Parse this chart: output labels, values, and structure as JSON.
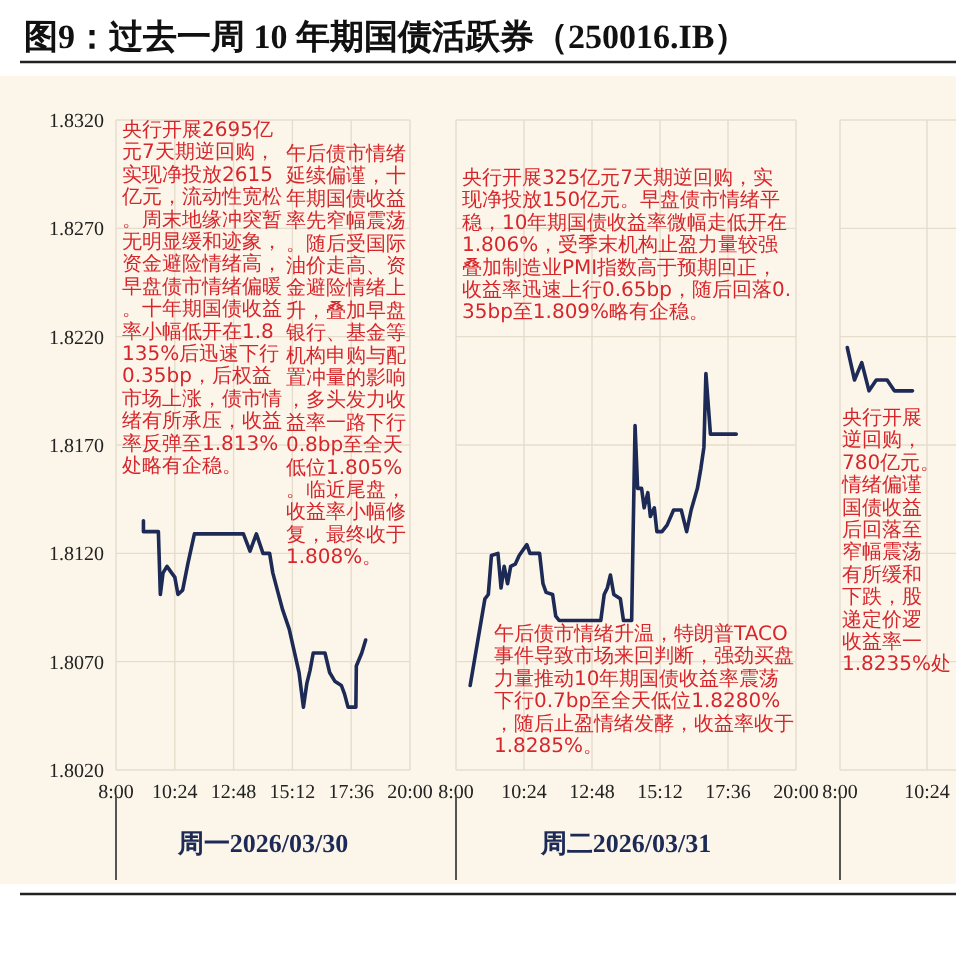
{
  "chart_data": [
    {
      "type": "line",
      "title": "图9：过去一周 10 年期国债活跃券（250016.IB）",
      "xlabel": "周一2026/03/30",
      "xlim": [
        8,
        20
      ],
      "ylim": [
        1.802,
        1.832
      ],
      "xticks": [
        {
          "value": 8,
          "label": "8:00"
        },
        {
          "value": 10.4,
          "label": "10:24"
        },
        {
          "value": 12.8,
          "label": "12:48"
        },
        {
          "value": 15.2,
          "label": "15:12"
        },
        {
          "value": 17.6,
          "label": "17:36"
        },
        {
          "value": 20,
          "label": "20:00"
        }
      ],
      "yticks": [
        {
          "value": 1.802,
          "label": "1.8020"
        },
        {
          "value": 1.807,
          "label": "1.8070"
        },
        {
          "value": 1.812,
          "label": "1.8120"
        },
        {
          "value": 1.817,
          "label": "1.8170"
        },
        {
          "value": 1.822,
          "label": "1.8220"
        },
        {
          "value": 1.827,
          "label": "1.8270"
        },
        {
          "value": 1.832,
          "label": "1.8320"
        }
      ],
      "grid": true,
      "series": [
        {
          "color": "#1c2a55",
          "x": [
            9.12,
            9.12,
            9.73,
            9.81,
            9.92,
            10.08,
            10.27,
            10.4,
            10.53,
            10.72,
            10.93,
            11.2,
            13.2,
            13.47,
            13.73,
            14.0,
            14.27,
            14.4,
            14.61,
            14.8,
            15.07,
            15.25,
            15.47,
            15.65,
            15.79,
            15.92,
            16.05,
            16.53,
            16.72,
            16.93,
            17.2,
            17.33,
            17.47,
            17.79,
            17.81,
            18.03,
            18.19
          ],
          "values": [
            1.8135,
            1.813,
            1.813,
            1.8101,
            1.8111,
            1.8114,
            1.8111,
            1.8109,
            1.8101,
            1.8103,
            1.8115,
            1.8129,
            1.8129,
            1.8121,
            1.8129,
            1.812,
            1.812,
            1.8111,
            1.8102,
            1.8094,
            1.8085,
            1.8076,
            1.8065,
            1.8049,
            1.806,
            1.8066,
            1.8074,
            1.8074,
            1.8065,
            1.8061,
            1.8059,
            1.8055,
            1.8049,
            1.8049,
            1.8068,
            1.8074,
            1.808
          ]
        }
      ],
      "annotations": [
        "央行开展2695亿元7天期逆回购，实现净投放2615亿元，流动性宽松。周末地缘冲突暂无明显缓和迹象，资金避险情绪高，早盘债市情绪偏暖。十年期国债收益率小幅低开在1.8135%后迅速下行0.35bp，后权益市场上涨，债市情绪有所承压，收益率反弹至1.813%处略有企稳。",
        "午后债市情绪延续偏谨，十年期国债收益率先窄幅震荡。随后受国际油价走高、资金避险情绪上升，叠加早盘银行、基金等机构申购与配置冲量的影响，多头发力收益率一路下行0.8bp至全天低位1.805%。临近尾盘，收益率小幅修复，最终收于1.808%。"
      ]
    },
    {
      "type": "line",
      "xlabel": "周二2026/03/31",
      "xlim": [
        8,
        20
      ],
      "ylim": [
        1.802,
        1.832
      ],
      "xticks": [
        {
          "value": 8,
          "label": "8:00"
        },
        {
          "value": 10.4,
          "label": "10:24"
        },
        {
          "value": 12.8,
          "label": "12:48"
        },
        {
          "value": 15.2,
          "label": "15:12"
        },
        {
          "value": 17.6,
          "label": "17:36"
        },
        {
          "value": 20,
          "label": "20:00"
        }
      ],
      "yticks": [
        1.802,
        1.807,
        1.812,
        1.817,
        1.822,
        1.827,
        1.832
      ],
      "grid": true,
      "tick_labels": "x",
      "series": [
        {
          "color": "#1c2a55",
          "x": [
            8.5,
            9.02,
            9.14,
            9.25,
            9.48,
            9.59,
            9.7,
            9.82,
            9.93,
            10.09,
            10.23,
            10.39,
            10.5,
            10.61,
            10.95,
            11.07,
            11.18,
            11.41,
            11.52,
            11.64,
            13.11,
            13.23,
            13.34,
            13.45,
            13.57,
            13.8,
            13.91,
            14.2,
            14.25,
            14.32,
            14.41,
            14.55,
            14.64,
            14.77,
            14.86,
            15.0,
            15.09,
            15.27,
            15.45,
            15.68,
            15.95,
            16.14,
            16.3,
            16.52,
            16.64,
            16.75,
            16.82,
            16.98,
            17.89
          ],
          "values": [
            1.8059,
            1.8099,
            1.8101,
            1.8119,
            1.812,
            1.8104,
            1.8114,
            1.8106,
            1.8114,
            1.8115,
            1.8119,
            1.8122,
            1.8124,
            1.812,
            1.812,
            1.8106,
            1.8102,
            1.8101,
            1.8091,
            1.8089,
            1.8089,
            1.8101,
            1.8104,
            1.811,
            1.8101,
            1.8099,
            1.8089,
            1.8089,
            1.8128,
            1.8179,
            1.815,
            1.815,
            1.8141,
            1.8148,
            1.8137,
            1.8141,
            1.813,
            1.813,
            1.8133,
            1.814,
            1.814,
            1.813,
            1.814,
            1.815,
            1.8159,
            1.8169,
            1.8203,
            1.8175,
            1.8175
          ]
        }
      ],
      "annotations": [
        "央行开展325亿元7天期逆回购，实现净投放150亿元。早盘债市情绪平稳，10年期国债收益率微幅走低开在1.806%，受季末机构止盈力量较强叠加制造业PMI指数高于预期回正，收益率迅速上行0.65bp，随后回落0.35bp至1.809%略有企稳。",
        "午后债市情绪升温，特朗普TACO事件导致市场来回判断，强劲买盘力量推动10年期国债收益率震荡下行0.7bp至全天低位1.8280%，随后止盈情绪发酵，收益率收于1.8285%。"
      ]
    },
    {
      "type": "line",
      "xlim": [
        8,
        11.2
      ],
      "ylim": [
        1.802,
        1.832
      ],
      "xticks": [
        {
          "value": 8,
          "label": "8:00"
        },
        {
          "value": 10.4,
          "label": "10:24"
        }
      ],
      "yticks": [
        1.802,
        1.807,
        1.812,
        1.817,
        1.822,
        1.827,
        1.832
      ],
      "grid": true,
      "tick_labels": "x",
      "series": [
        {
          "color": "#1c2a55",
          "x": [
            8.2,
            8.4,
            8.6,
            8.8,
            9.0,
            9.3,
            9.5,
            10.0
          ],
          "values": [
            1.8215,
            1.82,
            1.8208,
            1.8195,
            1.82,
            1.82,
            1.8195,
            1.8195
          ]
        }
      ],
      "annotations": [
        "央行开展",
        "逆回购，",
        "780亿元。",
        "情绪偏谨",
        "国债收益",
        "后回落至",
        "窄幅震荡",
        "有所缓和",
        "下跌，股",
        "递定价逻",
        "收益率一",
        "1.8235%处"
      ]
    }
  ]
}
